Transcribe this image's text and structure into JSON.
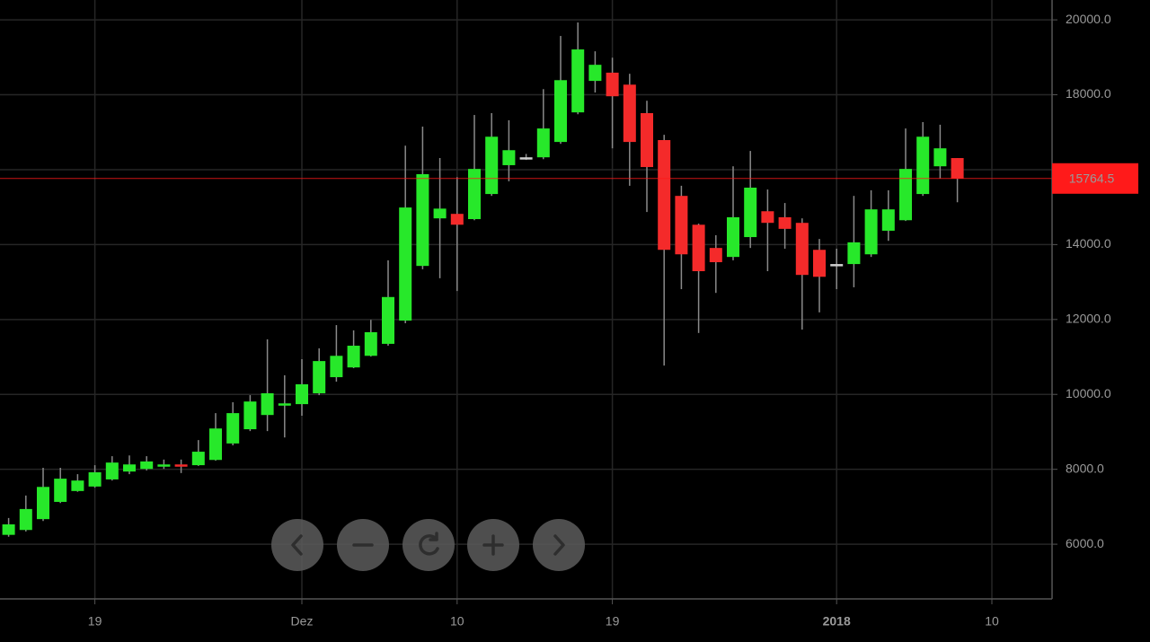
{
  "chart_data": {
    "type": "candlestick",
    "categories": [
      null,
      null,
      null,
      null,
      null,
      "19",
      null,
      null,
      null,
      null,
      null,
      null,
      null,
      null,
      null,
      null,
      null,
      "Dez",
      null,
      null,
      null,
      null,
      null,
      null,
      null,
      null,
      "10",
      null,
      null,
      null,
      null,
      null,
      null,
      null,
      null,
      "19",
      null,
      null,
      null,
      null,
      null,
      null,
      null,
      null,
      null,
      null,
      null,
      null,
      "2018",
      null,
      null,
      null,
      null,
      null,
      null,
      null,
      null,
      "10",
      null,
      null,
      null
    ],
    "open": [
      6250,
      6380,
      6670,
      7130,
      7420,
      7540,
      7730,
      7940,
      8010,
      8100,
      8130,
      8110,
      8250,
      8690,
      9070,
      9450,
      9720,
      9740,
      10030,
      10460,
      10720,
      11030,
      11350,
      11970,
      13430,
      14700,
      14820,
      14680,
      15350,
      16120,
      16330,
      16330,
      16740,
      17530,
      18370,
      18590,
      18270,
      17510,
      16790,
      15300,
      14530,
      13910,
      13670,
      14200,
      14890,
      14730,
      14580,
      13860,
      13480,
      13480,
      13740,
      14370,
      14650,
      15350,
      16090,
      16310,
      null,
      null,
      null,
      null,
      null
    ],
    "high": [
      6700,
      7300,
      8040,
      8040,
      7870,
      8110,
      8350,
      8370,
      8350,
      8260,
      8260,
      8780,
      9500,
      9790,
      9980,
      11470,
      10510,
      10940,
      11230,
      11850,
      11710,
      11990,
      13580,
      16640,
      17150,
      16310,
      15800,
      17460,
      17510,
      17320,
      16420,
      18150,
      19570,
      19930,
      19160,
      18990,
      18560,
      17840,
      16930,
      15570,
      14560,
      14250,
      16090,
      16500,
      15470,
      15110,
      14700,
      14150,
      13890,
      15300,
      15450,
      15450,
      17100,
      17270,
      17200,
      16310,
      null,
      null,
      null,
      null,
      null
    ],
    "low": [
      6200,
      6340,
      6620,
      7100,
      7400,
      7510,
      7700,
      7870,
      7970,
      8010,
      7900,
      8090,
      8230,
      8640,
      9020,
      9020,
      8850,
      9430,
      9980,
      10340,
      10700,
      11010,
      11300,
      11900,
      13340,
      13100,
      12760,
      14650,
      15300,
      15690,
      16260,
      16280,
      16690,
      17480,
      18060,
      16570,
      15570,
      14870,
      10770,
      12810,
      11640,
      12710,
      13580,
      13910,
      13290,
      13890,
      11730,
      12190,
      12810,
      12860,
      13670,
      14100,
      14630,
      15300,
      15760,
      15130,
      null,
      null,
      null,
      null,
      null
    ],
    "close": [
      6530,
      6940,
      7530,
      7750,
      7700,
      7920,
      8180,
      8130,
      8210,
      8130,
      8090,
      8470,
      9090,
      9500,
      9810,
      10030,
      9760,
      10270,
      10890,
      11030,
      11300,
      11660,
      12600,
      14990,
      15880,
      14960,
      14530,
      16020,
      16880,
      16520,
      16330,
      17100,
      18390,
      19210,
      18800,
      17960,
      16740,
      16070,
      13860,
      13740,
      13290,
      13530,
      14730,
      15520,
      14580,
      14420,
      13190,
      13140,
      13480,
      14060,
      14940,
      14940,
      16020,
      16880,
      16570,
      15760,
      null,
      null,
      null,
      null,
      null
    ],
    "up_color": "#27e82a",
    "down_color": "#f42a2a",
    "flat_color": "#cfcfcf",
    "ylim": [
      4540,
      20530
    ],
    "yticks": [
      {
        "value": 6000,
        "label": "6000.0"
      },
      {
        "value": 8000,
        "label": "8000.0"
      },
      {
        "value": 10000,
        "label": "10000.0"
      },
      {
        "value": 12000,
        "label": "12000.0"
      },
      {
        "value": 14000,
        "label": "14000.0"
      },
      {
        "value": 16000,
        "label": "16000.0"
      },
      {
        "value": 18000,
        "label": "18000.0"
      },
      {
        "value": 20000,
        "label": "20000.0"
      }
    ],
    "last_price": 15764.5,
    "last_price_color": "#ff1a1a",
    "grid": true
  }
}
